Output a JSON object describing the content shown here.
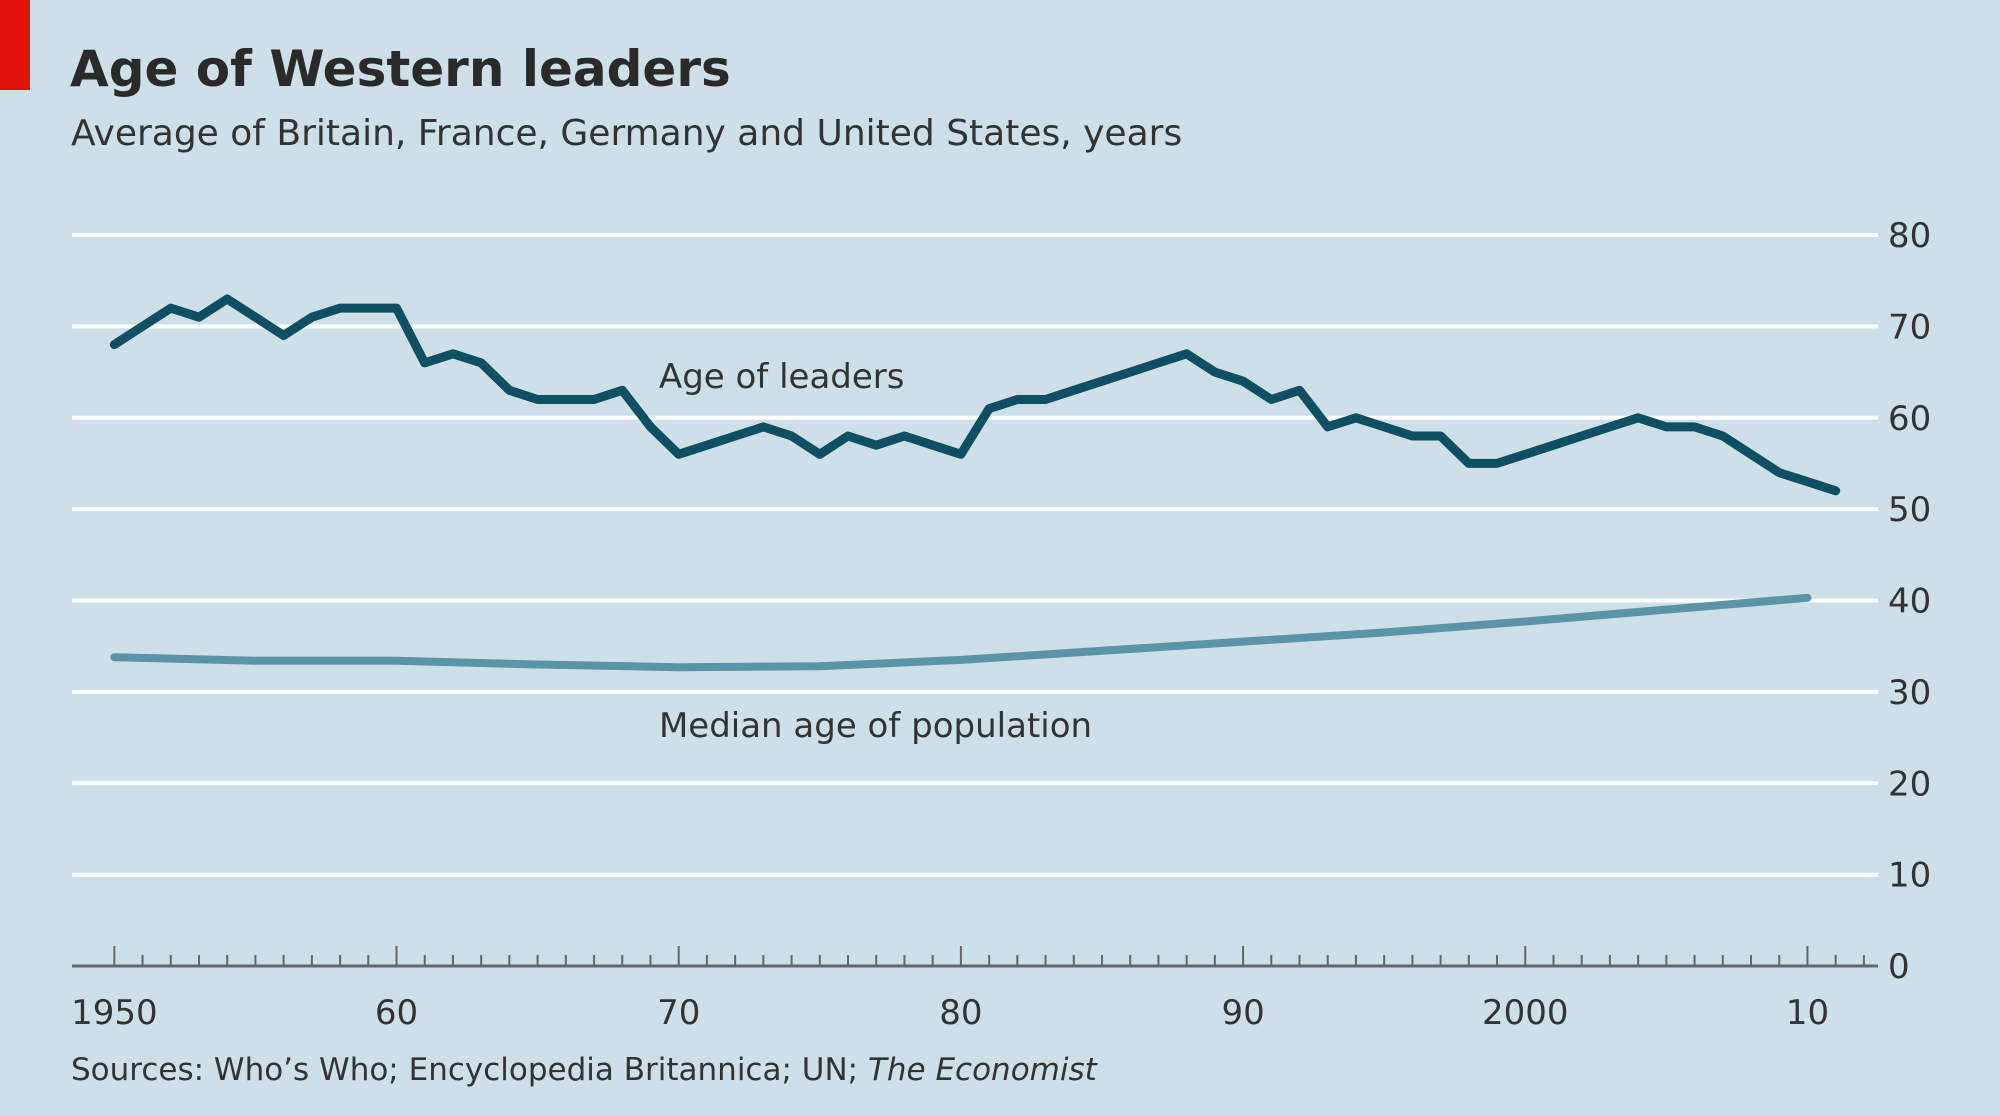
{
  "header": {
    "title": "Age of Western leaders",
    "subtitle": "Average of Britain, France, Germany and United States, years"
  },
  "footer": {
    "source_text": "Sources: Who’s Who; Encyclopedia Britannica; UN; ",
    "source_italic": "The Economist"
  },
  "colors": {
    "background": "#cfdfe7",
    "accent": "#e3120b",
    "leaders_line": "#0f4f63",
    "population_line": "#5b93a8",
    "grid": "#ffffff",
    "axis": "#666666"
  },
  "chart_data": {
    "type": "line",
    "title": "Age of Western leaders",
    "subtitle": "Average of Britain, France, Germany and United States, years",
    "xlabel": "",
    "ylabel": "",
    "xlim": [
      1948.5,
      2012.5
    ],
    "ylim": [
      0,
      80
    ],
    "y_ticks": [
      0,
      10,
      20,
      30,
      40,
      50,
      60,
      70,
      80
    ],
    "y_tick_labels": [
      "0",
      "10",
      "20",
      "30",
      "40",
      "50",
      "60",
      "70",
      "80"
    ],
    "x_ticks": [
      1950,
      1960,
      1970,
      1980,
      1990,
      2000,
      2010
    ],
    "x_tick_labels": [
      "1950",
      "60",
      "70",
      "80",
      "90",
      "2000",
      "10"
    ],
    "y_axis_side": "right",
    "grid": true,
    "series": [
      {
        "name": "Age of leaders",
        "x": [
          1950,
          1951,
          1952,
          1953,
          1954,
          1955,
          1956,
          1957,
          1958,
          1959,
          1960,
          1961,
          1962,
          1963,
          1964,
          1965,
          1966,
          1967,
          1968,
          1969,
          1970,
          1971,
          1972,
          1973,
          1974,
          1975,
          1976,
          1977,
          1978,
          1979,
          1980,
          1981,
          1982,
          1983,
          1984,
          1985,
          1986,
          1987,
          1988,
          1989,
          1990,
          1991,
          1992,
          1993,
          1994,
          1995,
          1996,
          1997,
          1998,
          1999,
          2000,
          2001,
          2002,
          2003,
          2004,
          2005,
          2006,
          2007,
          2008,
          2009,
          2010,
          2011
        ],
        "values": [
          68,
          70,
          72,
          71,
          73,
          71,
          69,
          71,
          72,
          72,
          72,
          66,
          67,
          66,
          63,
          62,
          62,
          62,
          63,
          59,
          56,
          57,
          58,
          59,
          58,
          56,
          58,
          57,
          58,
          57,
          56,
          61,
          62,
          62,
          63,
          64,
          65,
          66,
          67,
          65,
          64,
          62,
          63,
          59,
          60,
          59,
          58,
          58,
          55,
          55,
          56,
          57,
          58,
          59,
          60,
          59,
          59,
          58,
          56,
          54,
          53,
          52
        ]
      },
      {
        "name": "Median age of population",
        "x": [
          1950,
          1955,
          1960,
          1965,
          1970,
          1975,
          1980,
          1985,
          1990,
          1995,
          2000,
          2005,
          2010
        ],
        "values": [
          33.8,
          33.4,
          33.4,
          33.0,
          32.7,
          32.8,
          33.5,
          34.5,
          35.5,
          36.5,
          37.7,
          39.0,
          40.3
        ]
      }
    ]
  }
}
